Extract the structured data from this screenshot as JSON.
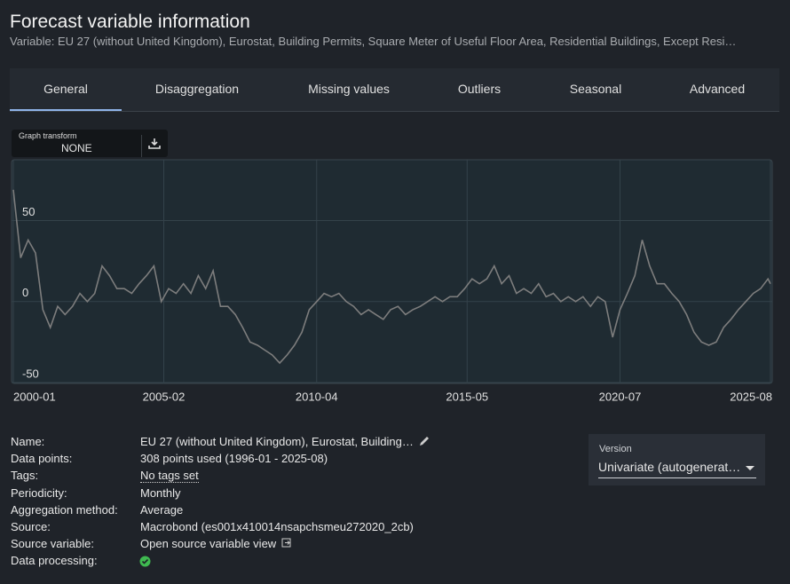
{
  "header": {
    "title": "Forecast variable information",
    "subtitle": "Variable: EU 27 (without United Kingdom), Eurostat, Building Permits, Square Meter of Useful Floor Area, Residential Buildings, Except Resi…"
  },
  "tabs": [
    "General",
    "Disaggregation",
    "Missing values",
    "Outliers",
    "Seasonal",
    "Advanced"
  ],
  "graph_transform": {
    "label": "Graph transform",
    "value": "NONE"
  },
  "chart_data": {
    "type": "line",
    "x": [
      "2000-01",
      "2000-04",
      "2000-07",
      "2000-10",
      "2001-01",
      "2001-04",
      "2001-07",
      "2001-10",
      "2002-01",
      "2002-04",
      "2002-07",
      "2002-10",
      "2003-01",
      "2003-04",
      "2003-07",
      "2003-10",
      "2004-01",
      "2004-04",
      "2004-07",
      "2004-10",
      "2005-01",
      "2005-04",
      "2005-07",
      "2005-10",
      "2006-01",
      "2006-04",
      "2006-07",
      "2006-10",
      "2007-01",
      "2007-04",
      "2007-07",
      "2007-10",
      "2008-01",
      "2008-04",
      "2008-07",
      "2008-10",
      "2009-01",
      "2009-04",
      "2009-07",
      "2009-10",
      "2010-01",
      "2010-04",
      "2010-07",
      "2010-10",
      "2011-01",
      "2011-04",
      "2011-07",
      "2011-10",
      "2012-01",
      "2012-04",
      "2012-07",
      "2012-10",
      "2013-01",
      "2013-04",
      "2013-07",
      "2013-10",
      "2014-01",
      "2014-04",
      "2014-07",
      "2014-10",
      "2015-01",
      "2015-04",
      "2015-07",
      "2015-10",
      "2016-01",
      "2016-04",
      "2016-07",
      "2016-10",
      "2017-01",
      "2017-04",
      "2017-07",
      "2017-10",
      "2018-01",
      "2018-04",
      "2018-07",
      "2018-10",
      "2019-01",
      "2019-04",
      "2019-07",
      "2019-10",
      "2020-01",
      "2020-04",
      "2020-07",
      "2020-10",
      "2021-01",
      "2021-04",
      "2021-07",
      "2021-10",
      "2022-01",
      "2022-04",
      "2022-07",
      "2022-10",
      "2023-01",
      "2023-04",
      "2023-07",
      "2023-10",
      "2024-01",
      "2024-04",
      "2024-07",
      "2024-10",
      "2025-01",
      "2025-04",
      "2025-07",
      "2025-08"
    ],
    "series": [
      {
        "color": "#7d7d7d",
        "values": [
          69,
          27,
          38,
          30,
          -5,
          -16,
          -3,
          -8,
          -3,
          5,
          0,
          5,
          22,
          16,
          8,
          8,
          5,
          11,
          16,
          22,
          0,
          8,
          5,
          11,
          5,
          16,
          8,
          19,
          -3,
          -3,
          -8,
          -16,
          -25,
          -27,
          -30,
          -33,
          -38,
          -33,
          -27,
          -19,
          -5,
          0,
          5,
          3,
          5,
          0,
          -3,
          -8,
          -5,
          -8,
          -11,
          -5,
          -3,
          -8,
          -5,
          -3,
          0,
          3,
          0,
          3,
          3,
          8,
          14,
          11,
          14,
          22,
          11,
          16,
          5,
          8,
          5,
          11,
          3,
          5,
          0,
          3,
          0,
          3,
          -3,
          3,
          0,
          -22,
          -5,
          5,
          16,
          38,
          22,
          11,
          11,
          5,
          0,
          -8,
          -19,
          -25,
          -27,
          -25,
          -16,
          -11,
          -5,
          0,
          5,
          8,
          14,
          11
        ]
      }
    ],
    "xlim": [
      "2000-01",
      "2025-08"
    ],
    "xticks": [
      "2000-01",
      "2005-02",
      "2010-04",
      "2015-05",
      "2020-07",
      "2025-08"
    ],
    "ylim": [
      -50,
      87
    ],
    "yticks": [
      -50,
      0,
      50
    ],
    "grid": true
  },
  "info": [
    {
      "label": "Name:",
      "value": "EU 27 (without United Kingdom), Eurostat, Building…"
    },
    {
      "label": "Data points:",
      "value": "308 points used (1996-01 - 2025-08)"
    },
    {
      "label": "Tags:",
      "value": "No tags set"
    },
    {
      "label": "Periodicity:",
      "value": "Monthly"
    },
    {
      "label": "Aggregation method:",
      "value": "Average"
    },
    {
      "label": "Source:",
      "value": "Macrobond (es001x410014nsapchsmeu272020_2cb)"
    },
    {
      "label": "Source variable:",
      "value": "Open source variable view"
    },
    {
      "label": "Data processing:"
    }
  ],
  "version": {
    "label": "Version",
    "value": "Univariate (autogenerat…"
  }
}
